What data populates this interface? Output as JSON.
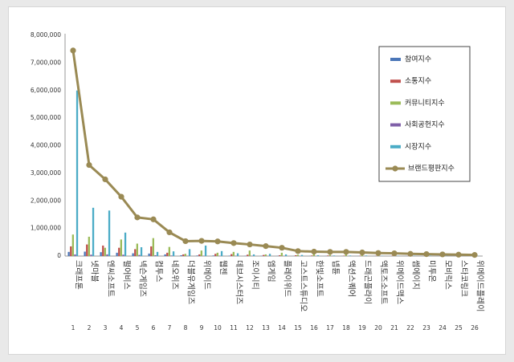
{
  "chart_data": {
    "type": "bar",
    "ylim": [
      0,
      8000000
    ],
    "yticks": [
      "0",
      "1,000,000",
      "2,000,000",
      "3,000,000",
      "4,000,000",
      "5,000,000",
      "6,000,000",
      "7,000,000",
      "8,000,000"
    ],
    "rank_labels": [
      "1",
      "2",
      "3",
      "4",
      "5",
      "6",
      "7",
      "8",
      "9",
      "10",
      "11",
      "12",
      "13",
      "14",
      "15",
      "16",
      "17",
      "18",
      "19",
      "20",
      "21",
      "22",
      "23",
      "24",
      "25",
      "26"
    ],
    "categories": [
      "크래프톤",
      "넷마블",
      "엔씨소프트",
      "펄어비스",
      "넥슨게임즈",
      "컴투스",
      "네오위즈",
      "더블유게임즈",
      "위메이드",
      "웹젠",
      "데브시스터즈",
      "조이시티",
      "엠게임",
      "플레이위드",
      "고스트스튜디오",
      "한빛소프트",
      "넵튠",
      "액션스퀘어",
      "드래곤플라이",
      "액토즈소프트",
      "위메이드맥스",
      "썸에이지",
      "미투온",
      "모비릭스",
      "스타코링크",
      "위메이드플레이"
    ],
    "series": [
      {
        "name": "참여지수",
        "kind": "bar",
        "color": "#4a76b8",
        "values": [
          150000,
          160000,
          140000,
          120000,
          100000,
          90000,
          60000,
          30000,
          20000,
          20000,
          15000,
          10000,
          10000,
          8000,
          5000,
          5000,
          5000,
          4000,
          4000,
          3000,
          3000,
          2000,
          2000,
          2000,
          1500,
          1500
        ]
      },
      {
        "name": "소통지수",
        "kind": "bar",
        "color": "#c0504d",
        "values": [
          350000,
          420000,
          380000,
          300000,
          250000,
          350000,
          120000,
          60000,
          60000,
          80000,
          70000,
          50000,
          40000,
          30000,
          30000,
          20000,
          20000,
          15000,
          12000,
          10000,
          10000,
          8000,
          8000,
          6000,
          5000,
          5000
        ]
      },
      {
        "name": "커뮤니티지수",
        "kind": "bar",
        "color": "#9bbb59",
        "values": [
          780000,
          700000,
          300000,
          600000,
          450000,
          650000,
          330000,
          80000,
          200000,
          120000,
          150000,
          200000,
          60000,
          120000,
          50000,
          80000,
          40000,
          60000,
          40000,
          50000,
          30000,
          30000,
          30000,
          20000,
          20000,
          15000
        ]
      },
      {
        "name": "사회공헌지수",
        "kind": "bar",
        "color": "#7f5fa8",
        "values": [
          60000,
          50000,
          60000,
          50000,
          40000,
          30000,
          20000,
          10000,
          10000,
          10000,
          10000,
          10000,
          5000,
          5000,
          5000,
          5000,
          5000,
          3000,
          3000,
          3000,
          2000,
          2000,
          2000,
          2000,
          1000,
          1000
        ]
      },
      {
        "name": "시장지수",
        "kind": "bar",
        "color": "#4bacc6",
        "values": [
          6000000,
          1750000,
          1650000,
          850000,
          320000,
          150000,
          170000,
          250000,
          380000,
          180000,
          100000,
          60000,
          80000,
          60000,
          40000,
          30000,
          20000,
          20000,
          20000,
          10000,
          10000,
          10000,
          10000,
          5000,
          5000,
          5000
        ]
      },
      {
        "name": "브랜드평판지수",
        "kind": "line",
        "color": "#9a8a54",
        "values": [
          7450000,
          3300000,
          2780000,
          2150000,
          1400000,
          1330000,
          860000,
          540000,
          550000,
          530000,
          470000,
          420000,
          360000,
          300000,
          180000,
          160000,
          150000,
          150000,
          130000,
          110000,
          100000,
          80000,
          70000,
          60000,
          50000,
          40000
        ]
      }
    ]
  }
}
